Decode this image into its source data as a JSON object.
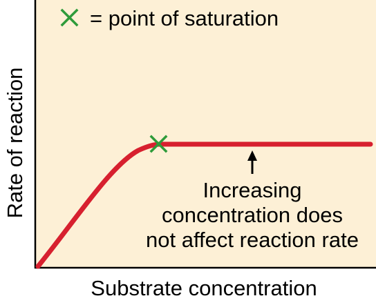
{
  "chart_data": {
    "type": "line",
    "title": "",
    "xlabel": "Substrate concentration",
    "ylabel": "Rate of reaction",
    "series": [
      {
        "values_note_free": true,
        "color": "#d7202f"
      }
    ],
    "legend": {
      "marker_color": "#2e9b3a",
      "text": "= point of saturation",
      "placement": "top-left"
    },
    "annotation": {
      "lines": [
        "Increasing",
        "concentration does",
        "not affect reaction rate"
      ]
    },
    "colors": {
      "background": "#fdf0d6",
      "axis": "#000000",
      "curve": "#d7202f",
      "marker": "#2e9b3a"
    },
    "grid": false
  }
}
